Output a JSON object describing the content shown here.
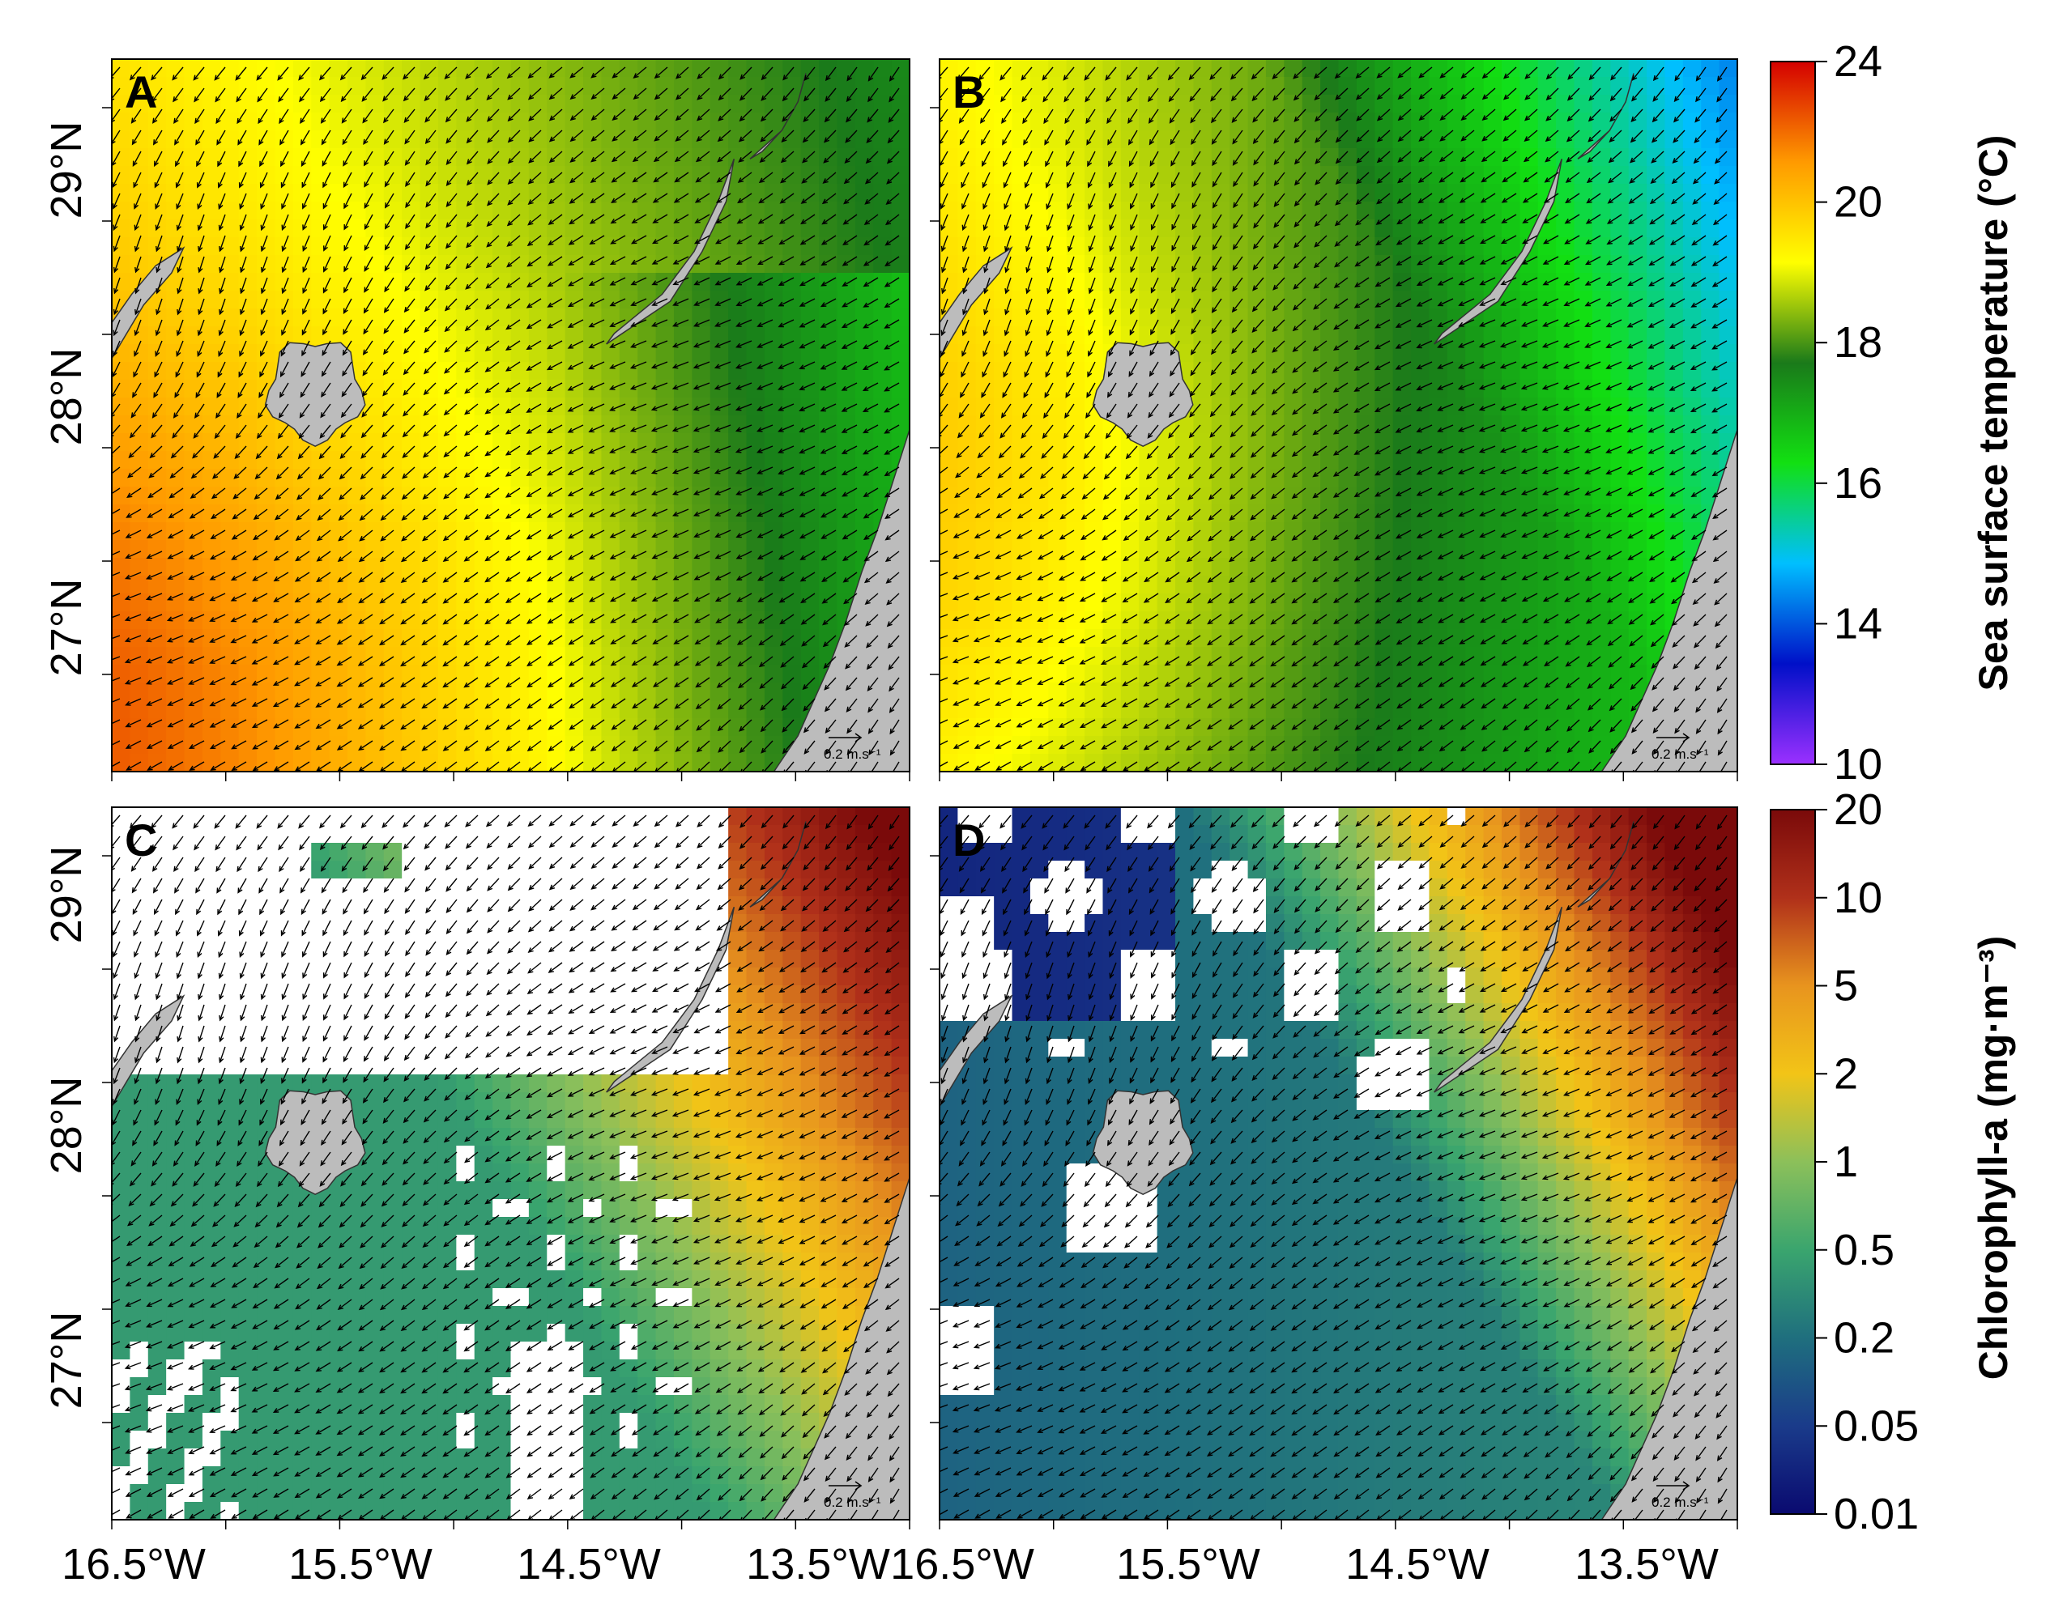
{
  "panels": [
    {
      "letter": "A",
      "field": "sst",
      "variant": "A",
      "cloud": false,
      "scale_label": "0.2 m.s⁻¹"
    },
    {
      "letter": "B",
      "field": "sst",
      "variant": "B",
      "cloud": false,
      "scale_label": "0.2 m.s⁻¹"
    },
    {
      "letter": "C",
      "field": "chl",
      "variant": "C",
      "cloud": true,
      "scale_label": "0.2 m.s⁻¹"
    },
    {
      "letter": "D",
      "field": "chl",
      "variant": "D",
      "cloud": true,
      "scale_label": "0.2 m.s⁻¹"
    }
  ],
  "axes": {
    "lat_labels": [
      "29°N",
      "28°N",
      "27°N"
    ],
    "lon_labels": [
      "16.5°W",
      "15.5°W",
      "14.5°W",
      "13.5°W"
    ]
  },
  "colorbars": {
    "sst": {
      "title": "Sea surface temperature (°C)",
      "ticks": [
        "24",
        "20",
        "18",
        "16",
        "14",
        "10"
      ],
      "stops": [
        "#9b30ff",
        "#0010c8",
        "#00bfff",
        "#12e012",
        "#1a7a1a",
        "#ffff00",
        "#ff9a00",
        "#d40000"
      ]
    },
    "chl": {
      "title": "Chlorophyll-a (mg·m⁻³)",
      "ticks": [
        "20",
        "10",
        "5",
        "2",
        "1",
        "0.5",
        "0.2",
        "0.05",
        "0.01"
      ],
      "stops": [
        "#0a0a70",
        "#1a3b8a",
        "#1f6f7e",
        "#3aa56e",
        "#8cc05a",
        "#f2c417",
        "#e8941e",
        "#b0301a",
        "#7a0a0a"
      ]
    }
  },
  "colors": {
    "land": "#bcbcbc",
    "arrow": "#000000",
    "cloud": "#ffffff"
  }
}
